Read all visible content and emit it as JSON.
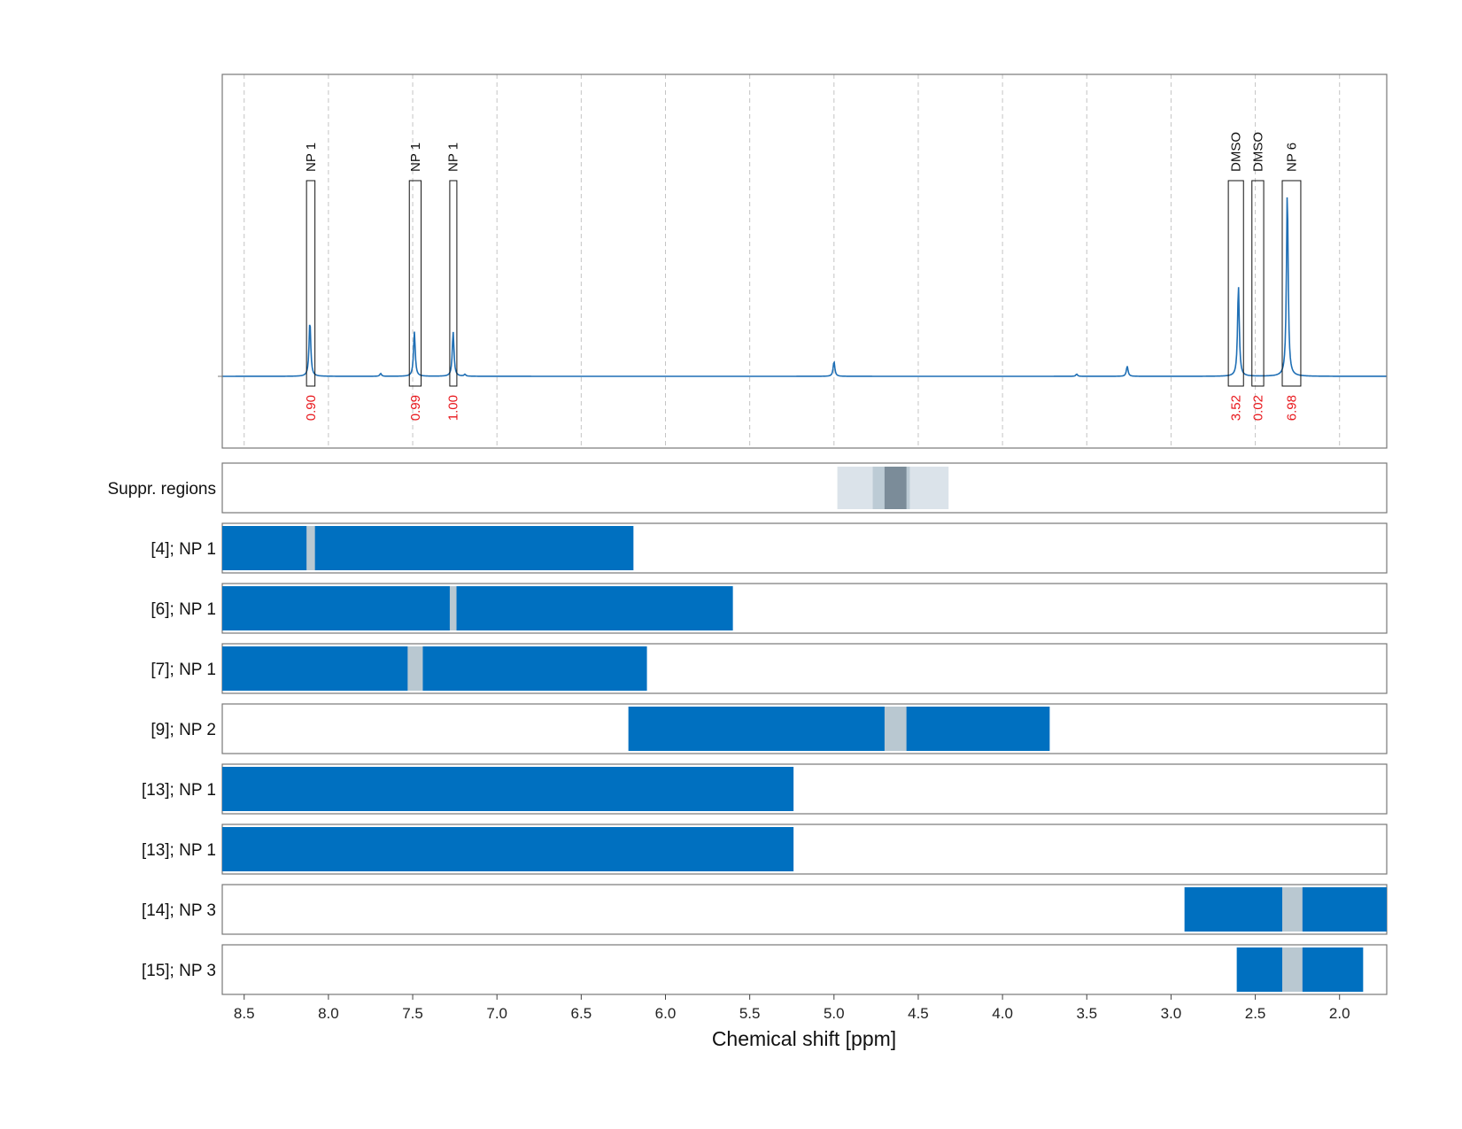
{
  "colors": {
    "spectrum": "#1f6fb5",
    "bar": "#0070c0",
    "gap": "#b9c8d1",
    "integral": "#e8161b",
    "supp_light": "#dbe3ea",
    "supp_mid": "#bccbd5",
    "supp_dark": "#7b8c99"
  },
  "chart_data": {
    "type": "line",
    "xlabel": "Chemical shift [ppm]",
    "xlim": [
      8.63,
      1.72
    ],
    "x_ticks": [
      {
        "value": 8.5,
        "label": "8.5"
      },
      {
        "value": 8.0,
        "label": "8.0"
      },
      {
        "value": 7.5,
        "label": "7.5"
      },
      {
        "value": 7.0,
        "label": "7.0"
      },
      {
        "value": 6.5,
        "label": "6.5"
      },
      {
        "value": 6.0,
        "label": "6.0"
      },
      {
        "value": 5.5,
        "label": "5.5"
      },
      {
        "value": 5.0,
        "label": "5.0"
      },
      {
        "value": 4.5,
        "label": "4.5"
      },
      {
        "value": 4.0,
        "label": "4.0"
      },
      {
        "value": 3.5,
        "label": "3.5"
      },
      {
        "value": 3.0,
        "label": "3.0"
      },
      {
        "value": 2.5,
        "label": "2.5"
      },
      {
        "value": 2.0,
        "label": "2.0"
      }
    ],
    "grid": "vertical dashed",
    "spectrum_peaks": [
      {
        "ppm": 8.11,
        "height": 0.3
      },
      {
        "ppm": 7.69,
        "height": 0.015
      },
      {
        "ppm": 7.49,
        "height": 0.24
      },
      {
        "ppm": 7.26,
        "height": 0.24
      },
      {
        "ppm": 7.19,
        "height": 0.01
      },
      {
        "ppm": 5.0,
        "height": 0.08
      },
      {
        "ppm": 3.56,
        "height": 0.012
      },
      {
        "ppm": 3.26,
        "height": 0.055
      },
      {
        "ppm": 2.6,
        "height": 0.49
      },
      {
        "ppm": 2.31,
        "height": 1.0
      }
    ],
    "annotations": [
      {
        "label": "NP 1",
        "integral": "0.90",
        "from": 8.13,
        "to": 8.08
      },
      {
        "label": "NP 1",
        "integral": "0.99",
        "from": 7.52,
        "to": 7.45
      },
      {
        "label": "NP 1",
        "integral": "1.00",
        "from": 7.28,
        "to": 7.24
      },
      {
        "label": "DMSO",
        "integral": "3.52",
        "from": 2.66,
        "to": 2.57
      },
      {
        "label": "DMSO",
        "integral": "0.02",
        "from": 2.52,
        "to": 2.45
      },
      {
        "label": "NP 6",
        "integral": "6.98",
        "from": 2.34,
        "to": 2.23
      }
    ],
    "suppression_row": {
      "label": "Suppr. regions",
      "bands": [
        {
          "from": 4.98,
          "to": 4.32,
          "shade": "light"
        },
        {
          "from": 4.77,
          "to": 4.55,
          "shade": "mid"
        },
        {
          "from": 4.7,
          "to": 4.57,
          "shade": "dark"
        }
      ]
    },
    "rows": [
      {
        "label": "[4]; NP 1",
        "from": 8.63,
        "to": 6.19,
        "gap": [
          8.13,
          8.08
        ]
      },
      {
        "label": "[6]; NP 1",
        "from": 8.63,
        "to": 5.6,
        "gap": [
          7.28,
          7.24
        ]
      },
      {
        "label": "[7]; NP 1",
        "from": 8.63,
        "to": 6.11,
        "gap": [
          7.53,
          7.44
        ]
      },
      {
        "label": "[9]; NP 2",
        "from": 6.22,
        "to": 3.72,
        "gap": [
          4.7,
          4.57
        ]
      },
      {
        "label": "[13]; NP 1",
        "from": 8.63,
        "to": 5.24
      },
      {
        "label": "[13]; NP 1",
        "from": 8.63,
        "to": 5.24
      },
      {
        "label": "[14]; NP 3",
        "from": 2.92,
        "to": 1.72,
        "gap": [
          2.34,
          2.22
        ]
      },
      {
        "label": "[15]; NP 3",
        "from": 2.61,
        "to": 1.86,
        "gap": [
          2.34,
          2.22
        ]
      }
    ]
  }
}
